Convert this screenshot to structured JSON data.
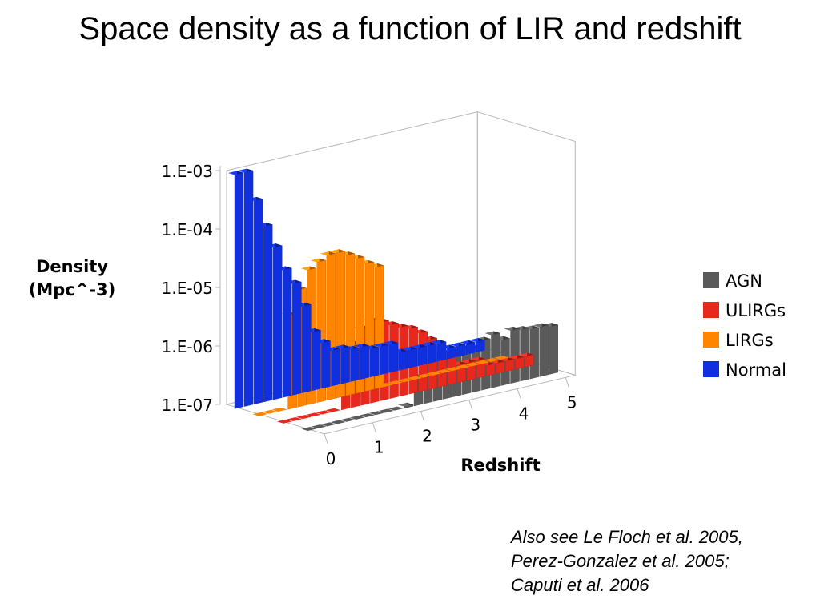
{
  "slide": {
    "title": "Space density as a function of LIR and redshift",
    "references": [
      "Also see Le Floch et al. 2005,",
      "Perez-Gonzalez et al. 2005;",
      "Caputi et al. 2006"
    ]
  },
  "chart_data": {
    "type": "bar",
    "style": "3d-clustered-column",
    "title": "",
    "xlabel": "Redshift",
    "ylabel": [
      "Density",
      "(Mpc^-3)"
    ],
    "y_scale": "log",
    "ylim": [
      1e-07,
      0.001
    ],
    "y_ticks": [
      "1.E-03",
      "1.E-04",
      "1.E-05",
      "1.E-06",
      "1.E-07"
    ],
    "x_ticks": [
      "0",
      "1",
      "2",
      "3",
      "4",
      "5"
    ],
    "z": [
      0.0,
      0.2,
      0.4,
      0.6,
      0.8,
      1.0,
      1.2,
      1.4,
      1.6,
      1.8,
      2.0,
      2.2,
      2.4,
      2.6,
      2.8,
      3.0,
      3.2,
      3.4,
      3.6,
      3.8,
      4.0,
      4.2,
      4.4,
      4.6,
      4.8,
      5.0
    ],
    "legend_position": "right",
    "legend_order": [
      "AGN",
      "ULIRGs",
      "LIRGs",
      "Normal"
    ],
    "series": [
      {
        "name": "AGN",
        "color": "#5a5a5a",
        "values": [
          null,
          null,
          null,
          null,
          null,
          null,
          null,
          null,
          null,
          null,
          1e-07,
          3e-07,
          5e-07,
          6e-07,
          5.5e-07,
          5e-07,
          6e-07,
          5.5e-07,
          7e-07,
          8e-07,
          6e-07,
          8e-07,
          7.5e-07,
          7e-07,
          7e-07,
          6.5e-07
        ]
      },
      {
        "name": "ULIRGs",
        "color": "#e8281c",
        "values": [
          null,
          null,
          null,
          null,
          null,
          null,
          6e-07,
          1.2e-06,
          2e-06,
          2.5e-06,
          2.2e-06,
          1.8e-06,
          1.5e-06,
          1.3e-06,
          1e-06,
          7e-07,
          4e-07,
          3e-07,
          2e-07,
          2e-07,
          2e-07,
          1.5e-07,
          1.5e-07,
          1.5e-07,
          1.5e-07,
          1.5e-07
        ]
      },
      {
        "name": "LIRGs",
        "color": "#ff8400",
        "values": [
          null,
          null,
          null,
          4e-06,
          1e-05,
          2e-05,
          2.5e-05,
          3e-05,
          3e-05,
          2.5e-05,
          2e-05,
          1.5e-05,
          1.2e-05,
          null,
          null,
          null,
          null,
          null,
          null,
          null,
          null,
          null,
          null,
          null,
          null,
          null
        ]
      },
      {
        "name": "Normal",
        "color": "#1030e0",
        "values": [
          0.001,
          0.001,
          0.0003,
          0.0001,
          4e-05,
          1.5e-05,
          8e-06,
          3e-06,
          1e-06,
          6e-07,
          4e-07,
          4e-07,
          3.5e-07,
          3.5e-07,
          3e-07,
          3e-07,
          3e-07,
          2e-07,
          2e-07,
          2e-07,
          2e-07,
          2e-07,
          1.5e-07,
          1.5e-07,
          1.5e-07,
          1.5e-07
        ]
      }
    ]
  }
}
